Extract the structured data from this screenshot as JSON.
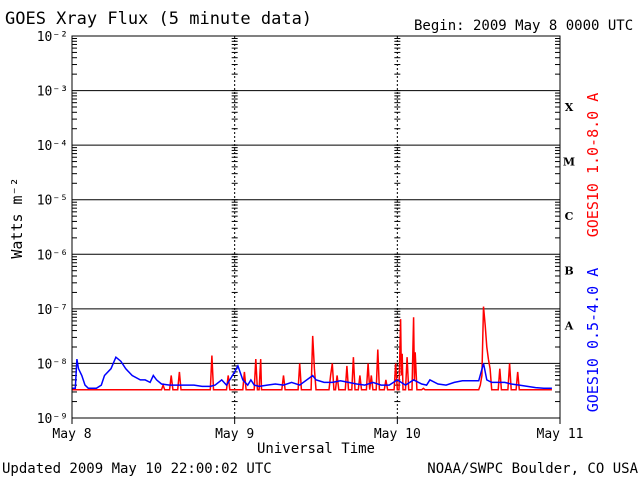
{
  "chart_data": {
    "type": "line",
    "title": "GOES Xray Flux (5 minute data)",
    "begin_label": "Begin:  2009 May 8 0000 UTC",
    "xlabel": "Universal Time",
    "ylabel": "Watts m⁻²",
    "y_scale": "log",
    "ylim": [
      1e-09,
      0.01
    ],
    "y_ticks": [
      {
        "value": 1e-09,
        "label": "10⁻⁹"
      },
      {
        "value": 1e-08,
        "label": "10⁻⁸"
      },
      {
        "value": 1e-07,
        "label": "10⁻⁷"
      },
      {
        "value": 1e-06,
        "label": "10⁻⁶"
      },
      {
        "value": 1e-05,
        "label": "10⁻⁵"
      },
      {
        "value": 0.0001,
        "label": "10⁻⁴"
      },
      {
        "value": 0.001,
        "label": "10⁻³"
      },
      {
        "value": 0.01,
        "label": "10⁻²"
      }
    ],
    "x_unit": "days since 2009 May 8 0000 UTC",
    "xlim": [
      0,
      3
    ],
    "x_ticks": [
      {
        "value": 0,
        "label": "May 8"
      },
      {
        "value": 1,
        "label": "May 9"
      },
      {
        "value": 2,
        "label": "May 10"
      },
      {
        "value": 3,
        "label": "May 11"
      }
    ],
    "flare_classes": [
      {
        "label": "X",
        "value": 0.0005
      },
      {
        "label": "M",
        "value": 5e-05
      },
      {
        "label": "C",
        "value": 5e-06
      },
      {
        "label": "B",
        "value": 5e-07
      },
      {
        "label": "A",
        "value": 5e-08
      }
    ],
    "grid": true,
    "series": [
      {
        "name": "GOES10 1.0-8.0 A",
        "color": "#ff0000",
        "points": [
          [
            0.0,
            3.3e-09
          ],
          [
            0.3,
            3.3e-09
          ],
          [
            0.55,
            3.3e-09
          ],
          [
            0.56,
            4e-09
          ],
          [
            0.57,
            3.3e-09
          ],
          [
            0.6,
            3.3e-09
          ],
          [
            0.61,
            6e-09
          ],
          [
            0.62,
            3.3e-09
          ],
          [
            0.65,
            3.3e-09
          ],
          [
            0.66,
            7e-09
          ],
          [
            0.67,
            3.3e-09
          ],
          [
            0.85,
            3.3e-09
          ],
          [
            0.86,
            1.4e-08
          ],
          [
            0.87,
            3.3e-09
          ],
          [
            0.95,
            3.3e-09
          ],
          [
            0.96,
            6e-09
          ],
          [
            0.97,
            3.3e-09
          ],
          [
            1.05,
            3.3e-09
          ],
          [
            1.06,
            7e-09
          ],
          [
            1.07,
            3.3e-09
          ],
          [
            1.12,
            3.3e-09
          ],
          [
            1.13,
            1.2e-08
          ],
          [
            1.14,
            3.3e-09
          ],
          [
            1.15,
            3.3e-09
          ],
          [
            1.16,
            1.2e-08
          ],
          [
            1.165,
            3.3e-09
          ],
          [
            1.29,
            3.3e-09
          ],
          [
            1.3,
            6e-09
          ],
          [
            1.31,
            3.3e-09
          ],
          [
            1.39,
            3.3e-09
          ],
          [
            1.4,
            1e-08
          ],
          [
            1.41,
            3.3e-09
          ],
          [
            1.47,
            3.3e-09
          ],
          [
            1.48,
            3.2e-08
          ],
          [
            1.49,
            8e-09
          ],
          [
            1.5,
            3.3e-09
          ],
          [
            1.58,
            3.3e-09
          ],
          [
            1.59,
            6e-09
          ],
          [
            1.6,
            1e-08
          ],
          [
            1.61,
            3.3e-09
          ],
          [
            1.62,
            3.3e-09
          ],
          [
            1.63,
            6e-09
          ],
          [
            1.64,
            3.3e-09
          ],
          [
            1.68,
            3.3e-09
          ],
          [
            1.69,
            9e-09
          ],
          [
            1.7,
            3.3e-09
          ],
          [
            1.72,
            3.3e-09
          ],
          [
            1.73,
            1.3e-08
          ],
          [
            1.74,
            3.3e-09
          ],
          [
            1.76,
            3.3e-09
          ],
          [
            1.77,
            6e-09
          ],
          [
            1.78,
            3.3e-09
          ],
          [
            1.81,
            3.3e-09
          ],
          [
            1.82,
            1e-08
          ],
          [
            1.83,
            3.3e-09
          ],
          [
            1.84,
            6e-09
          ],
          [
            1.85,
            3.3e-09
          ],
          [
            1.87,
            3.3e-09
          ],
          [
            1.88,
            1.8e-08
          ],
          [
            1.89,
            3.3e-09
          ],
          [
            1.92,
            3.3e-09
          ],
          [
            1.93,
            5e-09
          ],
          [
            1.94,
            3.3e-09
          ],
          [
            1.98,
            3.3e-09
          ],
          [
            1.99,
            1e-08
          ],
          [
            2.0,
            3.3e-09
          ],
          [
            2.01,
            3.3e-09
          ],
          [
            2.02,
            6.5e-08
          ],
          [
            2.025,
            6e-09
          ],
          [
            2.03,
            1.5e-08
          ],
          [
            2.035,
            3.3e-09
          ],
          [
            2.05,
            3.3e-09
          ],
          [
            2.06,
            1.3e-08
          ],
          [
            2.07,
            3.3e-09
          ],
          [
            2.09,
            3.3e-09
          ],
          [
            2.1,
            7e-08
          ],
          [
            2.105,
            5e-09
          ],
          [
            2.11,
            1.6e-08
          ],
          [
            2.12,
            3.3e-09
          ],
          [
            2.15,
            3.3e-09
          ],
          [
            2.16,
            3.5e-09
          ],
          [
            2.17,
            3.3e-09
          ],
          [
            2.5,
            3.3e-09
          ],
          [
            2.51,
            4e-09
          ],
          [
            2.52,
            6e-09
          ],
          [
            2.53,
            1.1e-07
          ],
          [
            2.54,
            5e-08
          ],
          [
            2.55,
            2e-08
          ],
          [
            2.56,
            1.2e-08
          ],
          [
            2.57,
            8e-09
          ],
          [
            2.58,
            3.3e-09
          ],
          [
            2.62,
            3.3e-09
          ],
          [
            2.63,
            8e-09
          ],
          [
            2.64,
            3.3e-09
          ],
          [
            2.68,
            3.3e-09
          ],
          [
            2.69,
            1e-08
          ],
          [
            2.7,
            3.3e-09
          ],
          [
            2.73,
            3.3e-09
          ],
          [
            2.74,
            7e-09
          ],
          [
            2.75,
            3.3e-09
          ],
          [
            2.8,
            3.3e-09
          ],
          [
            2.95,
            3.3e-09
          ]
        ]
      },
      {
        "name": "GOES10 0.5-4.0 A",
        "color": "#0000ff",
        "points": [
          [
            0.0,
            3.5e-09
          ],
          [
            0.02,
            3.5e-09
          ],
          [
            0.03,
            1.2e-08
          ],
          [
            0.04,
            8e-09
          ],
          [
            0.06,
            6e-09
          ],
          [
            0.08,
            4e-09
          ],
          [
            0.1,
            3.5e-09
          ],
          [
            0.15,
            3.5e-09
          ],
          [
            0.18,
            4e-09
          ],
          [
            0.2,
            6e-09
          ],
          [
            0.24,
            8e-09
          ],
          [
            0.27,
            1.3e-08
          ],
          [
            0.3,
            1.1e-08
          ],
          [
            0.33,
            8e-09
          ],
          [
            0.37,
            6e-09
          ],
          [
            0.42,
            5e-09
          ],
          [
            0.45,
            5e-09
          ],
          [
            0.48,
            4.5e-09
          ],
          [
            0.5,
            6e-09
          ],
          [
            0.52,
            5e-09
          ],
          [
            0.55,
            4.2e-09
          ],
          [
            0.6,
            4e-09
          ],
          [
            0.68,
            4e-09
          ],
          [
            0.75,
            4e-09
          ],
          [
            0.8,
            3.8e-09
          ],
          [
            0.85,
            3.8e-09
          ],
          [
            0.88,
            4e-09
          ],
          [
            0.92,
            5e-09
          ],
          [
            0.95,
            4e-09
          ],
          [
            1.0,
            7e-09
          ],
          [
            1.02,
            9e-09
          ],
          [
            1.05,
            5e-09
          ],
          [
            1.08,
            4e-09
          ],
          [
            1.1,
            5e-09
          ],
          [
            1.12,
            4e-09
          ],
          [
            1.15,
            3.8e-09
          ],
          [
            1.2,
            4e-09
          ],
          [
            1.25,
            4.2e-09
          ],
          [
            1.3,
            4e-09
          ],
          [
            1.35,
            4.5e-09
          ],
          [
            1.4,
            4e-09
          ],
          [
            1.48,
            6e-09
          ],
          [
            1.5,
            5e-09
          ],
          [
            1.55,
            4.5e-09
          ],
          [
            1.6,
            4.5e-09
          ],
          [
            1.65,
            4.8e-09
          ],
          [
            1.7,
            4.5e-09
          ],
          [
            1.75,
            4.2e-09
          ],
          [
            1.8,
            4e-09
          ],
          [
            1.85,
            4.5e-09
          ],
          [
            1.9,
            4e-09
          ],
          [
            1.95,
            4e-09
          ],
          [
            2.0,
            5e-09
          ],
          [
            2.05,
            4e-09
          ],
          [
            2.1,
            5e-09
          ],
          [
            2.15,
            4.2e-09
          ],
          [
            2.18,
            4e-09
          ],
          [
            2.2,
            5e-09
          ],
          [
            2.25,
            4.2e-09
          ],
          [
            2.3,
            4e-09
          ],
          [
            2.35,
            4.5e-09
          ],
          [
            2.4,
            4.8e-09
          ],
          [
            2.45,
            4.8e-09
          ],
          [
            2.5,
            4.8e-09
          ],
          [
            2.53,
            1e-08
          ],
          [
            2.55,
            5e-09
          ],
          [
            2.58,
            4.5e-09
          ],
          [
            2.62,
            4.5e-09
          ],
          [
            2.66,
            4.5e-09
          ],
          [
            2.7,
            4.2e-09
          ],
          [
            2.75,
            4e-09
          ],
          [
            2.8,
            3.8e-09
          ],
          [
            2.85,
            3.6e-09
          ],
          [
            2.9,
            3.5e-09
          ],
          [
            2.95,
            3.5e-09
          ]
        ]
      }
    ]
  },
  "footer": {
    "updated": "Updated 2009 May 10 22:00:02 UTC",
    "credit": "NOAA/SWPC Boulder, CO USA"
  }
}
